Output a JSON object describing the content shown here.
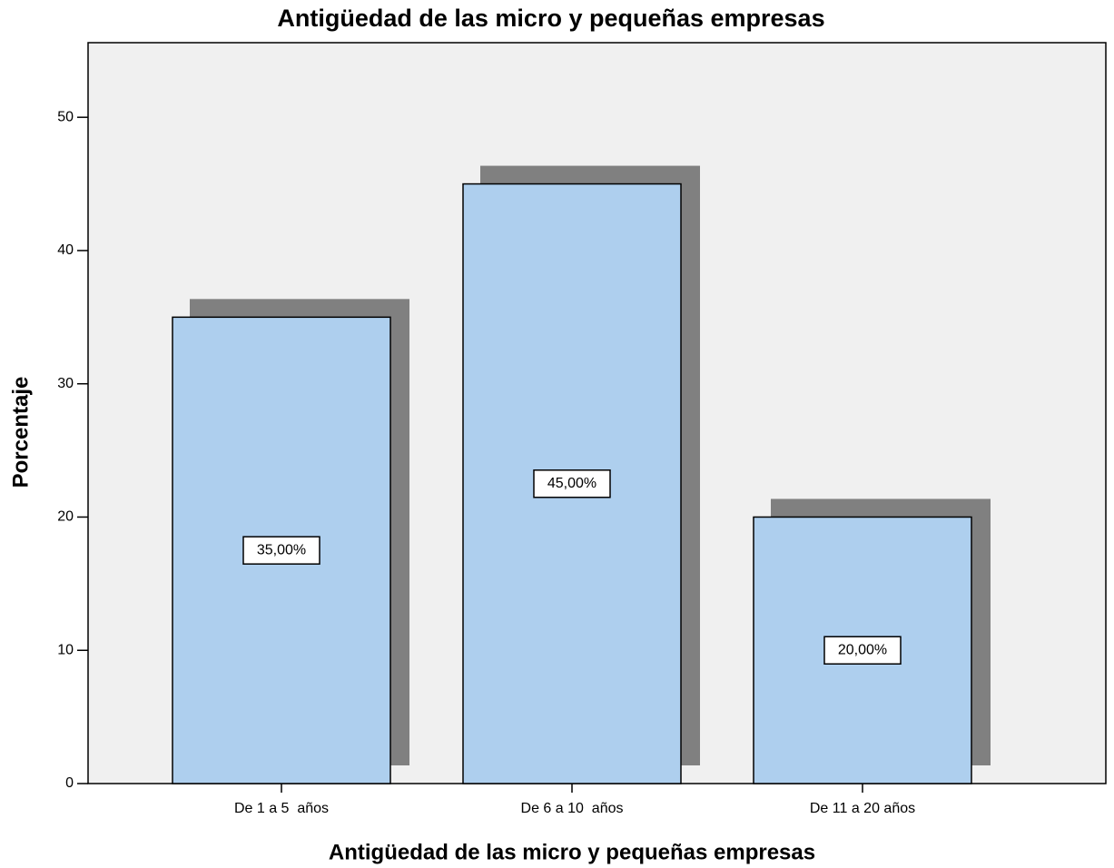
{
  "chart_data": {
    "type": "bar",
    "title": "Antigüedad de las micro y pequeñas empresas",
    "x_label": "Antigüedad de las micro y pequeñas empresas",
    "y_label": "Porcentaje",
    "categories": [
      "De 1 a 5  años",
      "De 6 a 10  años",
      "De 11 a 20 años"
    ],
    "values": [
      35,
      45,
      20
    ],
    "value_labels": [
      "35,00%",
      "45,00%",
      "20,00%"
    ],
    "color": "#aecfee",
    "ylim": [
      0,
      55.6
    ],
    "yticks": [
      0,
      10,
      20,
      30,
      40,
      50
    ]
  }
}
